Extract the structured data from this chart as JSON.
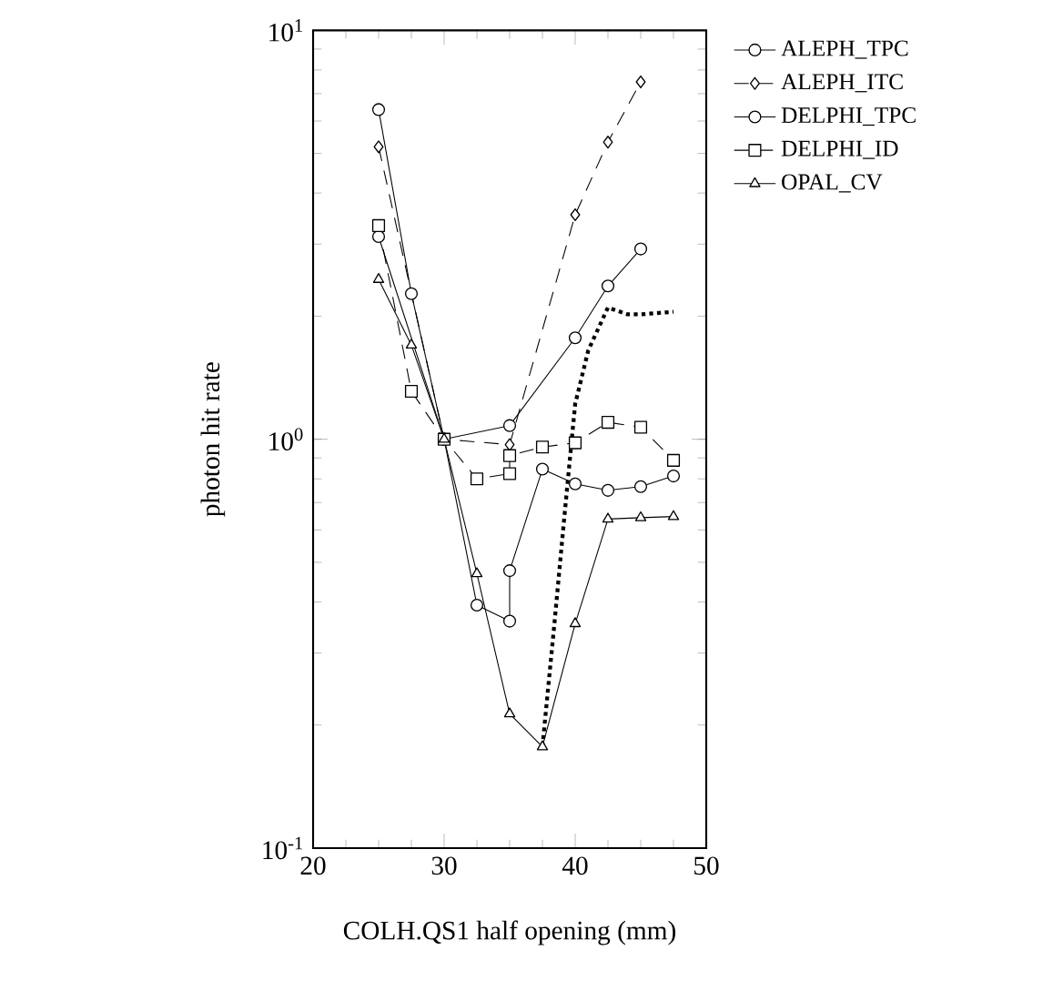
{
  "chart_data": {
    "type": "line",
    "xlabel": "COLH.QS1 half opening (mm)",
    "ylabel": "photon hit rate",
    "log": "y",
    "xlim": [
      20,
      50
    ],
    "xticks": [
      20,
      30,
      40,
      50
    ],
    "ylim": [
      0.1,
      10
    ],
    "yticks": [
      {
        "value": 0.1,
        "label": "10$^{-1}$"
      },
      {
        "value": 1,
        "label": "10$^{0}$"
      },
      {
        "value": 10,
        "label": "10$^{1}$"
      }
    ],
    "legend": "top right",
    "grid": false,
    "series": [
      {
        "name": "ALEPH_TPC",
        "color": "#000000",
        "marker": "circle",
        "line_style": "solid",
        "x": [
          25,
          30,
          35,
          40,
          42.5,
          45
        ],
        "values": [
          3.13,
          1.0,
          1.08,
          1.77,
          2.37,
          2.92
        ]
      },
      {
        "name": "ALEPH_ITC",
        "color": "#000000",
        "marker": "diamond",
        "line_style": "dashed",
        "x": [
          25,
          30,
          35,
          40,
          42.5,
          45
        ],
        "values": [
          5.19,
          1.0,
          0.97,
          3.54,
          5.33,
          7.48
        ]
      },
      {
        "name": "DELPHI_TPC",
        "color": "#000000",
        "marker": "circle",
        "line_style": "solid",
        "x": [
          25,
          27.5,
          30,
          32.5,
          35,
          35,
          37.5,
          40,
          42.5,
          45,
          47.5
        ],
        "values": [
          6.4,
          2.27,
          1.0,
          0.393,
          0.359,
          0.477,
          0.845,
          0.778,
          0.75,
          0.766,
          0.813
        ]
      },
      {
        "name": "DELPHI_ID",
        "color": "#000000",
        "marker": "square",
        "line_style": "dashed",
        "x": [
          25,
          27.5,
          30,
          32.5,
          35,
          35,
          37.5,
          40,
          42.5,
          45,
          47.5
        ],
        "values": [
          3.33,
          1.31,
          1.0,
          0.8,
          0.824,
          0.912,
          0.957,
          0.98,
          1.1,
          1.07,
          0.888
        ]
      },
      {
        "name": "OPAL_CV",
        "color": "#000000",
        "marker": "triangle",
        "line_style": "solid",
        "x": [
          25,
          27.5,
          30,
          32.5,
          35,
          37.5,
          40,
          42.5,
          45,
          47.5
        ],
        "values": [
          2.46,
          1.7,
          1.0,
          0.469,
          0.213,
          0.177,
          0.354,
          0.638,
          0.643,
          0.647
        ]
      },
      {
        "color": "#000000",
        "marker": "none",
        "line_style": "dotted",
        "x": [
          37.5,
          38.4,
          39.2,
          40,
          41,
          42.5,
          44,
          45,
          47.5
        ],
        "values": [
          0.177,
          0.35,
          0.66,
          1.22,
          1.65,
          2.1,
          2.02,
          2.02,
          2.05
        ]
      }
    ]
  }
}
